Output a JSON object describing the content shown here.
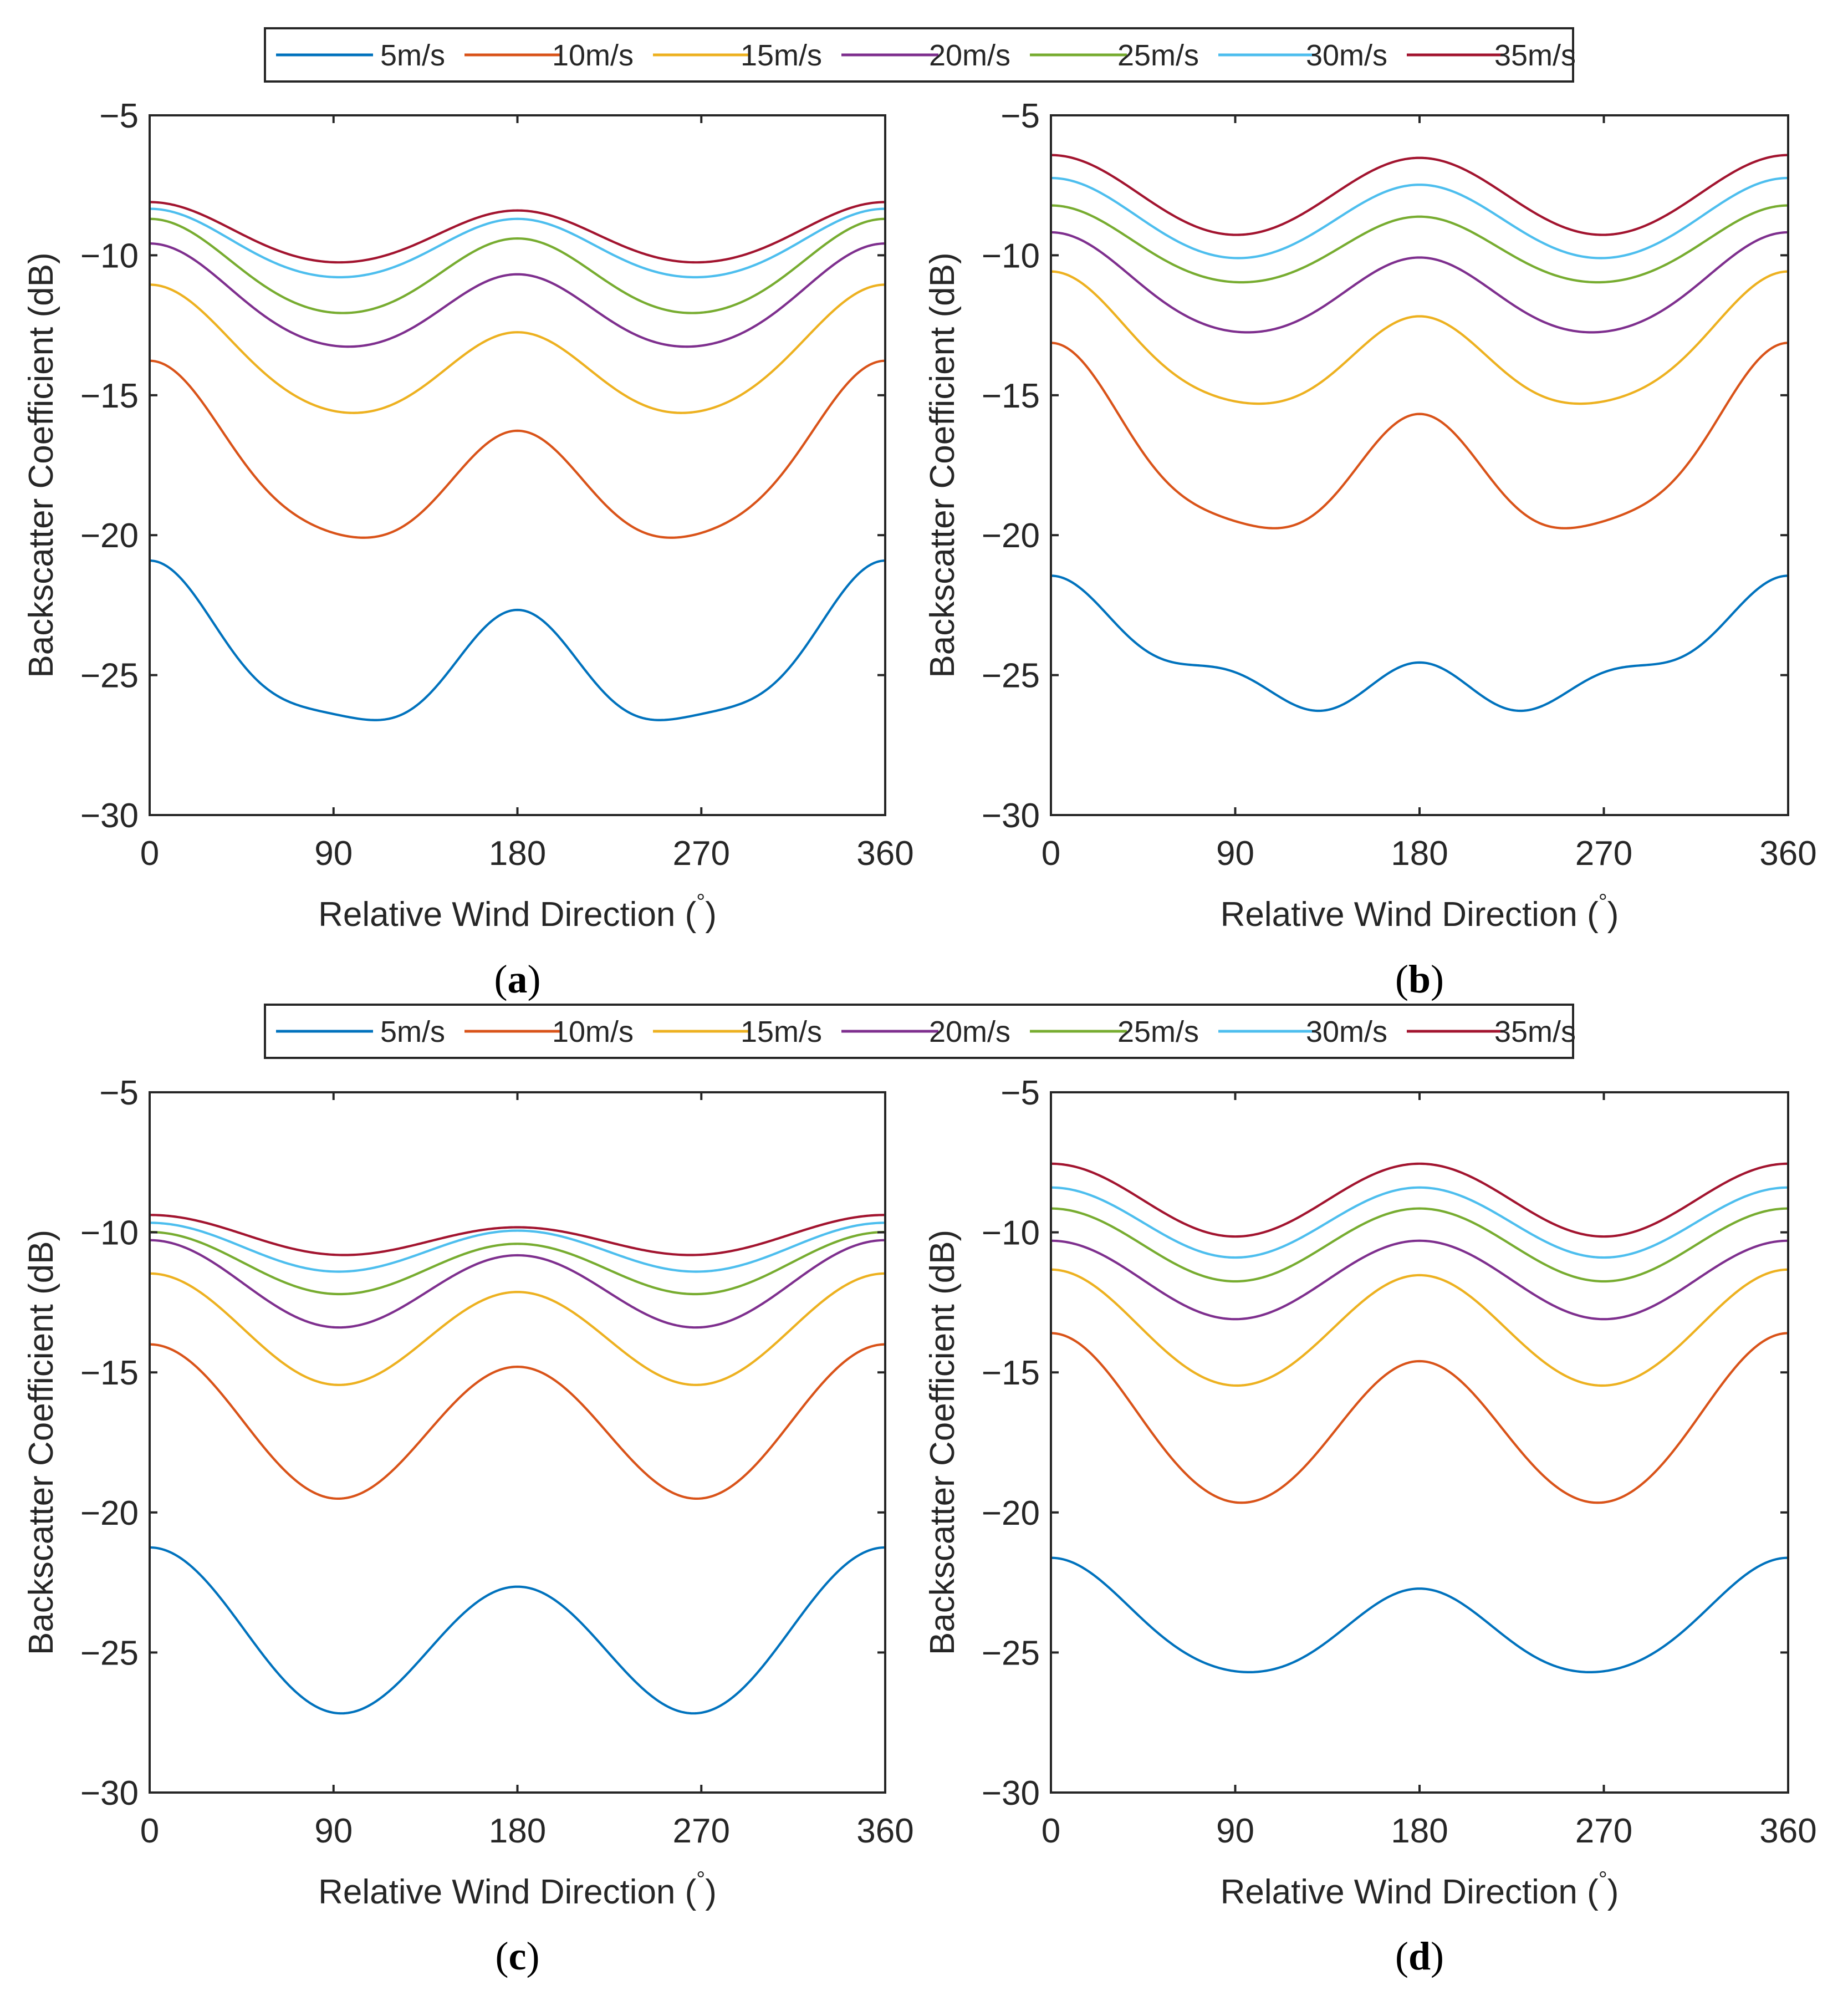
{
  "figure": {
    "legends": [
      {
        "entries": [
          "5m/s",
          "10m/s",
          "15m/s",
          "20m/s",
          "25m/s",
          "30m/s",
          "35m/s"
        ]
      },
      {
        "entries": [
          "5m/s",
          "10m/s",
          "15m/s",
          "20m/s",
          "25m/s",
          "30m/s",
          "35m/s"
        ]
      }
    ],
    "colors": [
      "#0072BD",
      "#D95319",
      "#EDB120",
      "#7E2F8E",
      "#77AC30",
      "#4DBEEE",
      "#A2142F"
    ]
  },
  "chart_data": [
    {
      "type": "line",
      "panel": "a",
      "panel_label_open": "(",
      "panel_label_letter": "a",
      "panel_label_close": ")",
      "xlabel": "Relative Wind Direction (",
      "xlabel_degree": "°",
      "xlabel_close": ")",
      "ylabel": "Backscatter Coefficient (dB)",
      "xlim": [
        0,
        360
      ],
      "ylim": [
        -30,
        -5
      ],
      "xticks": [
        0,
        90,
        180,
        270,
        360
      ],
      "xtick_labels": [
        "0",
        "90",
        "180",
        "270",
        "360"
      ],
      "yticks": [
        -30,
        -25,
        -20,
        -15,
        -10,
        -5
      ],
      "ytick_labels": [
        "−30",
        "−25",
        "−20",
        "−15",
        "−10",
        "−5"
      ],
      "series": [
        {
          "name": "5m/s",
          "A0": -24.64,
          "A1": 0.88,
          "A2": 2.3,
          "A3": 0.55
        },
        {
          "name": "10m/s",
          "A0": -17.82,
          "A1": 1.25,
          "A2": 2.45,
          "A3": 0.35
        },
        {
          "name": "15m/s",
          "A0": -13.88,
          "A1": 0.85,
          "A2": 1.83,
          "A3": 0.15
        },
        {
          "name": "20m/s",
          "A0": -11.8,
          "A1": 0.55,
          "A2": 1.55,
          "A3": 0.12
        },
        {
          "name": "25m/s",
          "A0": -10.65,
          "A1": 0.35,
          "A2": 1.5,
          "A3": 0.1
        },
        {
          "name": "30m/s",
          "A0": -9.72,
          "A1": 0.18,
          "A2": 1.13,
          "A3": 0.07
        },
        {
          "name": "35m/s",
          "A0": -9.3,
          "A1": 0.15,
          "A2": 1.0,
          "A3": 0.05
        }
      ]
    },
    {
      "type": "line",
      "panel": "b",
      "panel_label_open": "(",
      "panel_label_letter": "b",
      "panel_label_close": ")",
      "xlabel": "Relative Wind Direction (",
      "xlabel_degree": "°",
      "xlabel_close": ")",
      "ylabel": "Backscatter Coefficient (dB)",
      "xlim": [
        0,
        360
      ],
      "ylim": [
        -30,
        -5
      ],
      "xticks": [
        0,
        90,
        180,
        270,
        360
      ],
      "xtick_labels": [
        "0",
        "90",
        "180",
        "270",
        "360"
      ],
      "yticks": [
        -30,
        -25,
        -20,
        -15,
        -10,
        -5
      ],
      "ytick_labels": [
        "−30",
        "−25",
        "−20",
        "−15",
        "−10",
        "−5"
      ],
      "series": [
        {
          "name": "5m/s",
          "A0": -24.55,
          "A1": 1.55,
          "A2": 0.95,
          "A3": 0.6
        },
        {
          "name": "10m/s",
          "A0": -17.45,
          "A1": 1.27,
          "A2": 2.55,
          "A3": 0.5
        },
        {
          "name": "15m/s",
          "A0": -13.55,
          "A1": 0.8,
          "A2": 1.92,
          "A3": 0.25
        },
        {
          "name": "20m/s",
          "A0": -11.3,
          "A1": 0.45,
          "A2": 1.55,
          "A3": 0.12
        },
        {
          "name": "25m/s",
          "A0": -9.77,
          "A1": 0.2,
          "A2": 1.27,
          "A3": 0.08
        },
        {
          "name": "30m/s",
          "A0": -8.78,
          "A1": 0.12,
          "A2": 1.37,
          "A3": 0.05
        },
        {
          "name": "35m/s",
          "A0": -7.9,
          "A1": 0.05,
          "A2": 1.4,
          "A3": 0.03
        }
      ]
    },
    {
      "type": "line",
      "panel": "c",
      "panel_label_open": "(",
      "panel_label_letter": "c",
      "panel_label_close": ")",
      "xlabel": "Relative Wind Direction (",
      "xlabel_degree": "°",
      "xlabel_close": ")",
      "ylabel": "Backscatter Coefficient (dB)",
      "xlim": [
        0,
        360
      ],
      "ylim": [
        -30,
        -5
      ],
      "xticks": [
        0,
        90,
        180,
        270,
        360
      ],
      "xtick_labels": [
        "0",
        "90",
        "180",
        "270",
        "360"
      ],
      "yticks": [
        -30,
        -25,
        -20,
        -15,
        -10,
        -5
      ],
      "ytick_labels": [
        "−30",
        "−25",
        "−20",
        "−15",
        "−10",
        "−5"
      ],
      "series": [
        {
          "name": "5m/s",
          "A0": -24.55,
          "A1": 0.7,
          "A2": 2.6,
          "A3": 0.0
        },
        {
          "name": "10m/s",
          "A0": -16.95,
          "A1": 0.4,
          "A2": 2.55,
          "A3": 0.0
        },
        {
          "name": "15m/s",
          "A0": -13.62,
          "A1": 0.33,
          "A2": 1.82,
          "A3": 0.0
        },
        {
          "name": "20m/s",
          "A0": -11.97,
          "A1": 0.27,
          "A2": 1.42,
          "A3": 0.0
        },
        {
          "name": "25m/s",
          "A0": -11.2,
          "A1": 0.21,
          "A2": 1.0,
          "A3": 0.0
        },
        {
          "name": "30m/s",
          "A0": -10.6,
          "A1": 0.14,
          "A2": 0.8,
          "A3": 0.0
        },
        {
          "name": "35m/s",
          "A0": -10.2,
          "A1": 0.22,
          "A2": 0.6,
          "A3": 0.0
        }
      ]
    },
    {
      "type": "line",
      "panel": "d",
      "panel_label_open": "(",
      "panel_label_letter": "d",
      "panel_label_close": ")",
      "xlabel": "Relative Wind Direction (",
      "xlabel_degree": "°",
      "xlabel_close": ")",
      "ylabel": "Backscatter Coefficient (dB)",
      "xlim": [
        0,
        360
      ],
      "ylim": [
        -30,
        -5
      ],
      "xticks": [
        0,
        90,
        180,
        270,
        360
      ],
      "xtick_labels": [
        "0",
        "90",
        "180",
        "270",
        "360"
      ],
      "yticks": [
        -30,
        -25,
        -20,
        -15,
        -10,
        -5
      ],
      "ytick_labels": [
        "−30",
        "−25",
        "−20",
        "−15",
        "−10",
        "−5"
      ],
      "series": [
        {
          "name": "5m/s",
          "A0": -24.07,
          "A1": 0.55,
          "A2": 1.75,
          "A3": 0.15
        },
        {
          "name": "10m/s",
          "A0": -16.97,
          "A1": 0.5,
          "A2": 2.77,
          "A3": 0.1
        },
        {
          "name": "15m/s",
          "A0": -13.5,
          "A1": 0.1,
          "A2": 2.02,
          "A3": 0.05
        },
        {
          "name": "20m/s",
          "A0": -11.7,
          "A1": 0.0,
          "A2": 1.4,
          "A3": 0.0
        },
        {
          "name": "25m/s",
          "A0": -10.45,
          "A1": 0.0,
          "A2": 1.3,
          "A3": 0.0
        },
        {
          "name": "30m/s",
          "A0": -9.65,
          "A1": 0.0,
          "A2": 1.25,
          "A3": 0.0
        },
        {
          "name": "35m/s",
          "A0": -8.85,
          "A1": 0.0,
          "A2": 1.3,
          "A3": 0.0
        }
      ]
    }
  ]
}
